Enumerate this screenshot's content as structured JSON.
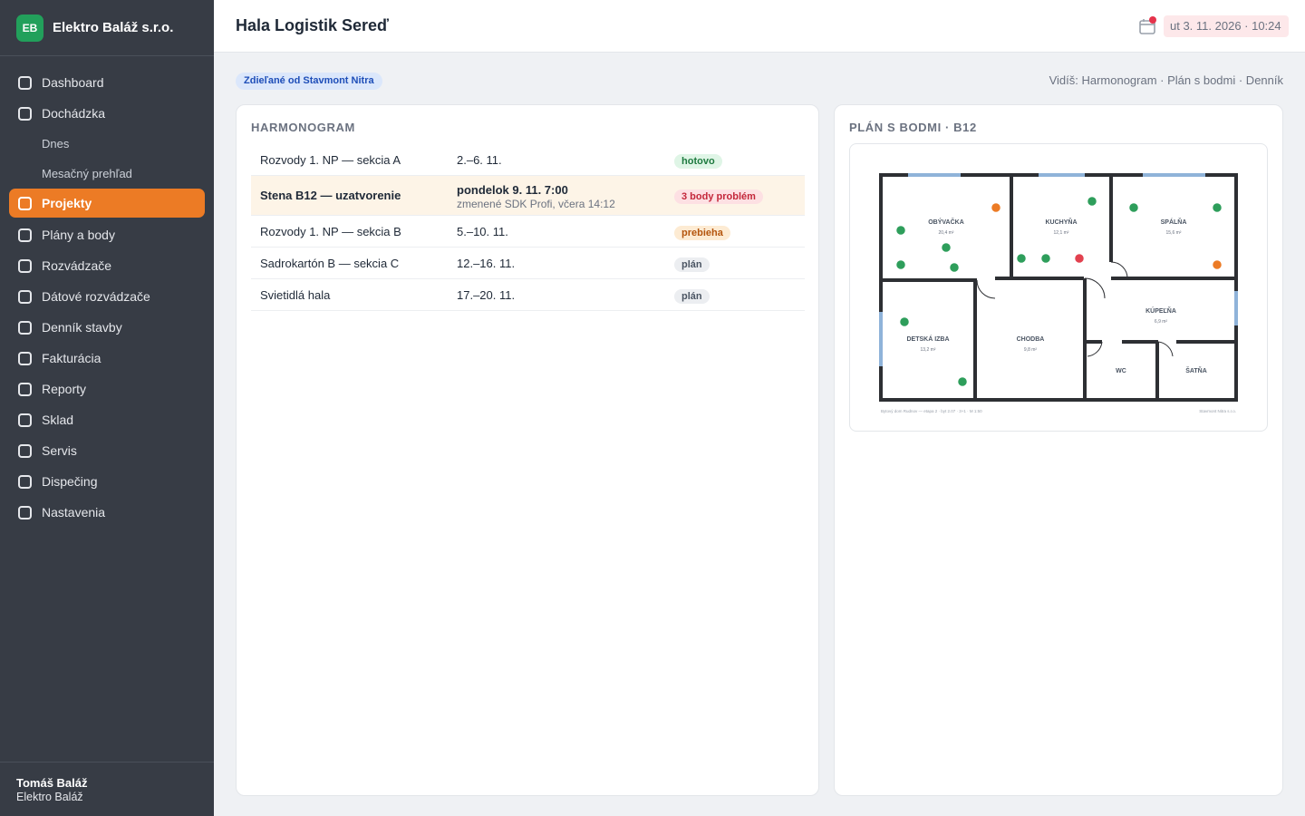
{
  "brand": {
    "logo": "EB",
    "name": "Elektro Baláž s.r.o."
  },
  "nav": {
    "items": [
      {
        "label": "Dashboard",
        "type": "item"
      },
      {
        "label": "Dochádzka",
        "type": "item"
      },
      {
        "label": "Dnes",
        "type": "sub"
      },
      {
        "label": "Mesačný prehľad",
        "type": "sub"
      },
      {
        "label": "Projekty",
        "type": "item",
        "active": true
      },
      {
        "label": "Plány a body",
        "type": "item"
      },
      {
        "label": "Rozvádzače",
        "type": "item"
      },
      {
        "label": "Dátové rozvádzače",
        "type": "item"
      },
      {
        "label": "Denník stavby",
        "type": "item"
      },
      {
        "label": "Fakturácia",
        "type": "item"
      },
      {
        "label": "Reporty",
        "type": "item"
      },
      {
        "label": "Sklad",
        "type": "item"
      },
      {
        "label": "Servis",
        "type": "item"
      },
      {
        "label": "Dispečing",
        "type": "item"
      },
      {
        "label": "Nastavenia",
        "type": "item"
      }
    ]
  },
  "user": {
    "name": "Tomáš Baláž",
    "company": "Elektro Baláž"
  },
  "header": {
    "title": "Hala Logistik Sereď",
    "datetime": "ut 3. 11. 2026 · 10:24",
    "calendar_icon": "calendar-icon"
  },
  "subbar": {
    "shared_badge": "Zdieľané od Stavmont Nitra",
    "visible_views": "Vidíš: Harmonogram · Plán s bodmi · Denník"
  },
  "harmonogram": {
    "title": "HARMONOGRAM",
    "rows": [
      {
        "name": "Rozvody 1. NP — sekcia A",
        "date": "2.–6. 11.",
        "note": "",
        "status": "hotovo",
        "status_kind": "done"
      },
      {
        "name": "Stena B12 — uzatvorenie",
        "date": "pondelok 9. 11. 7:00",
        "note": "zmenené SDK Profi, včera 14:12",
        "status": "3 body problém",
        "status_kind": "problem",
        "highlight": true
      },
      {
        "name": "Rozvody 1. NP — sekcia B",
        "date": "5.–10. 11.",
        "note": "",
        "status": "prebieha",
        "status_kind": "progress"
      },
      {
        "name": "Sadrokartón B — sekcia C",
        "date": "12.–16. 11.",
        "note": "",
        "status": "plán",
        "status_kind": "plan"
      },
      {
        "name": "Svietidlá hala",
        "date": "17.–20. 11.",
        "note": "",
        "status": "plán",
        "status_kind": "plan"
      }
    ]
  },
  "plan": {
    "title": "PLÁN S BODMI · B12",
    "rooms": [
      {
        "name": "OBÝVAČKA",
        "area": "20,4 m²"
      },
      {
        "name": "KUCHYŇA",
        "area": "12,1 m²"
      },
      {
        "name": "SPÁLŇA",
        "area": "15,6 m²"
      },
      {
        "name": "DETSKÁ IZBA",
        "area": "13,2 m²"
      },
      {
        "name": "CHODBA",
        "area": "9,8 m²"
      },
      {
        "name": "KÚPEĽŇA",
        "area": "6,9 m²"
      },
      {
        "name": "WC",
        "area": ""
      },
      {
        "name": "ŠATŇA",
        "area": ""
      }
    ],
    "footer_left": "Bytový dom Rudnov — etapa 2 · byt 2.07 · 3+1 · M 1:50",
    "footer_right": "Stavmont Nitra s.r.o.",
    "point_colors": {
      "ok": "#2e9e5b",
      "warning": "#ec7b25",
      "problem": "#e2414f"
    },
    "points": [
      {
        "room": "OBÝVAČKA",
        "status": "warning"
      },
      {
        "room": "OBÝVAČKA",
        "status": "ok"
      },
      {
        "room": "OBÝVAČKA",
        "status": "ok"
      },
      {
        "room": "OBÝVAČKA",
        "status": "ok"
      },
      {
        "room": "OBÝVAČKA",
        "status": "ok"
      },
      {
        "room": "KUCHYŇA",
        "status": "ok"
      },
      {
        "room": "KUCHYŇA",
        "status": "ok"
      },
      {
        "room": "KUCHYŇA",
        "status": "ok"
      },
      {
        "room": "KUCHYŇA",
        "status": "problem"
      },
      {
        "room": "SPÁLŇA",
        "status": "ok"
      },
      {
        "room": "SPÁLŇA",
        "status": "ok"
      },
      {
        "room": "SPÁLŇA",
        "status": "warning"
      },
      {
        "room": "DETSKÁ IZBA",
        "status": "ok"
      },
      {
        "room": "DETSKÁ IZBA",
        "status": "ok"
      }
    ]
  },
  "colors": {
    "accent": "#ec7b25",
    "sidebar": "#373c45",
    "brand": "#22a05b"
  }
}
